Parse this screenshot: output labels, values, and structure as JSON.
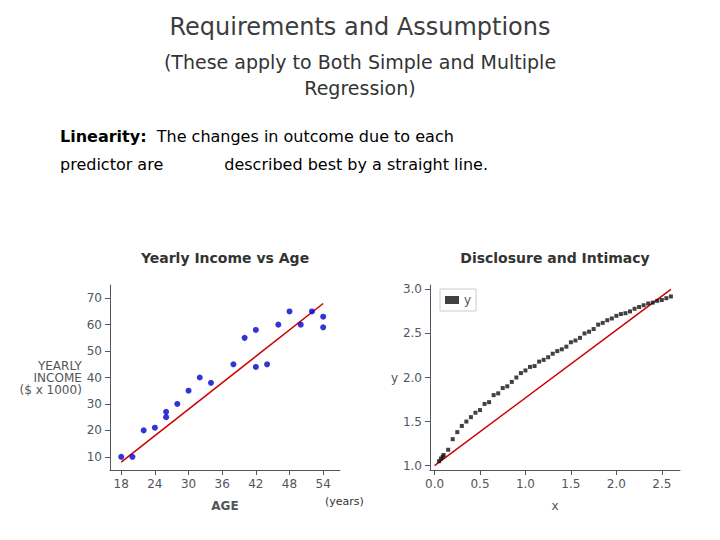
{
  "title": "Requirements and Assumptions",
  "subtitle": "(These apply to Both Simple and Multiple\nRegression)",
  "annotations": [
    "Linearity:",
    "The changes in outcome due to each",
    "predictor are            described best by a straight line."
  ],
  "chart_data": [
    {
      "type": "scatter",
      "title": "Yearly Income vs Age",
      "xlabel": "AGE",
      "ylabel": "YEARLY\nINCOME\n($ x 1000)",
      "annotations": [
        "(years)"
      ],
      "xlim": [
        16,
        57
      ],
      "ylim": [
        5,
        75
      ],
      "xticks": [
        18,
        24,
        30,
        36,
        42,
        48,
        54
      ],
      "yticks": [
        10,
        20,
        30,
        40,
        50,
        60,
        70
      ],
      "grid": false,
      "series": [
        {
          "type": "scatter",
          "marker": "circle",
          "color": "#0000cc",
          "x": [
            18,
            20,
            22,
            24,
            26,
            26,
            28,
            30,
            32,
            34,
            38,
            40,
            42,
            42,
            44,
            46,
            48,
            50,
            52,
            54,
            54
          ],
          "values": [
            10,
            10,
            20,
            21,
            25,
            27,
            30,
            35,
            40,
            38,
            45,
            55,
            58,
            44,
            45,
            60,
            65,
            60,
            65,
            63,
            59
          ]
        },
        {
          "type": "line",
          "color": "#cc0000",
          "x": [
            18,
            54
          ],
          "values": [
            8,
            68
          ]
        }
      ]
    },
    {
      "type": "scatter",
      "title": "Disclosure and Intimacy",
      "xlabel": "x",
      "ylabel": "y",
      "xlim": [
        -0.05,
        2.7
      ],
      "ylim": [
        0.95,
        3.05
      ],
      "xticks": [
        {
          "value": 0.0,
          "label": "0.0"
        },
        {
          "value": 0.5,
          "label": "0.5"
        },
        {
          "value": 1.0,
          "label": "1.0"
        },
        {
          "value": 1.5,
          "label": "1.5"
        },
        {
          "value": 2.0,
          "label": "2.0"
        },
        {
          "value": 2.5,
          "label": "2.5"
        }
      ],
      "yticks": [
        {
          "value": 1.0,
          "label": "1.0"
        },
        {
          "value": 1.5,
          "label": "1.5"
        },
        {
          "value": 2.0,
          "label": "2.0"
        },
        {
          "value": 2.5,
          "label": "2.5"
        },
        {
          "value": 3.0,
          "label": "3.0"
        }
      ],
      "grid": false,
      "legend": "upper left",
      "series": [
        {
          "name": "y",
          "type": "scatter",
          "marker": "square",
          "color": "#111111",
          "x": [
            0.05,
            0.07,
            0.09,
            0.1,
            0.15,
            0.2,
            0.25,
            0.3,
            0.35,
            0.4,
            0.45,
            0.5,
            0.55,
            0.6,
            0.65,
            0.7,
            0.75,
            0.8,
            0.85,
            0.9,
            0.95,
            1.0,
            1.05,
            1.1,
            1.15,
            1.2,
            1.25,
            1.3,
            1.35,
            1.4,
            1.45,
            1.5,
            1.55,
            1.6,
            1.65,
            1.7,
            1.75,
            1.8,
            1.85,
            1.9,
            1.95,
            2.0,
            2.05,
            2.1,
            2.15,
            2.2,
            2.25,
            2.3,
            2.35,
            2.4,
            2.45,
            2.5,
            2.55,
            2.6
          ],
          "values": [
            1.05,
            1.08,
            1.1,
            1.12,
            1.18,
            1.3,
            1.38,
            1.45,
            1.5,
            1.55,
            1.6,
            1.63,
            1.7,
            1.72,
            1.8,
            1.82,
            1.88,
            1.9,
            1.95,
            2.0,
            2.05,
            2.08,
            2.12,
            2.13,
            2.18,
            2.2,
            2.23,
            2.27,
            2.3,
            2.32,
            2.35,
            2.4,
            2.42,
            2.45,
            2.5,
            2.52,
            2.55,
            2.6,
            2.62,
            2.65,
            2.67,
            2.7,
            2.72,
            2.73,
            2.75,
            2.78,
            2.8,
            2.82,
            2.84,
            2.85,
            2.87,
            2.88,
            2.9,
            2.92
          ]
        },
        {
          "type": "line",
          "color": "#cc0000",
          "x": [
            0.0,
            2.6
          ],
          "values": [
            1.0,
            3.0
          ]
        }
      ]
    }
  ]
}
